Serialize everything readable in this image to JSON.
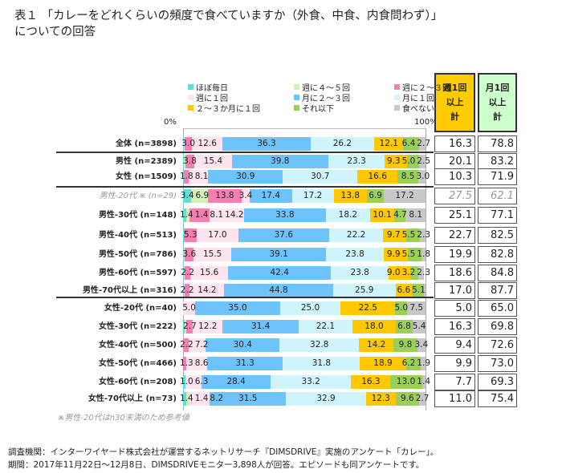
{
  "title_line1": "表１ 「カレーをどれくらいの頻度で食べていますか（外食、中食、内食問わず）」",
  "title_line2": "についての回答",
  "note": "※男性-20代はn30未満のため参考値",
  "footer_line1": "調査機関：インターワイヤード株式会社が運営するネットリサーチ『DIMSDRIVE』実施のアンケート「カレー」。",
  "footer_line2": "期間：2017年11月22日～12月8日、DIMSDRIVEモニター3,898人が回答。エピソードも同アンケートです。",
  "table_headers": {
    "weekly": [
      "週1回",
      "以上",
      "計"
    ],
    "monthly": [
      "月1回",
      "以上",
      "計"
    ]
  },
  "colors": {
    "weekly_header": "#ffcc00",
    "monthly_header": "#ccffcc"
  },
  "chart_data": {
    "type": "bar",
    "orientation": "horizontal-stacked-100",
    "axis_labels": {
      "left": "0%",
      "right": "100%"
    },
    "xlim": [
      0,
      100
    ],
    "legend_placement": "top",
    "series": [
      {
        "name": "ほぼ毎日",
        "color": "#5ee0d8"
      },
      {
        "name": "週に４～５回",
        "color": "#d4f0b8"
      },
      {
        "name": "週に２～３回",
        "color": "#f47fb0"
      },
      {
        "name": "週に１回",
        "color": "#fde4ef"
      },
      {
        "name": "月に２～３回",
        "color": "#6ec3fc"
      },
      {
        "name": "月に１回",
        "color": "#cff4fb"
      },
      {
        "name": "２～３か月に１回",
        "color": "#ffc800"
      },
      {
        "name": "それ以下",
        "color": "#9ad05a"
      },
      {
        "name": "食べない",
        "color": "#c8c8c8"
      }
    ],
    "categories": [
      {
        "label": "全体 (n=3898)",
        "values": [
          0.3,
          0.4,
          3.0,
          12.6,
          36.3,
          26.2,
          12.1,
          6.4,
          2.7
        ],
        "weekly": "16.3",
        "monthly": "78.8"
      },
      {
        "label": "男性 (n=2389)",
        "values": [
          0.4,
          0.5,
          3.8,
          15.4,
          39.8,
          23.3,
          9.3,
          5.0,
          2.5
        ],
        "weekly": "20.1",
        "monthly": "83.2"
      },
      {
        "label": "女性 (n=1509)",
        "values": [
          0.2,
          0.2,
          1.8,
          8.1,
          30.9,
          30.7,
          16.6,
          8.5,
          3.0
        ],
        "weekly": "10.3",
        "monthly": "71.9"
      },
      {
        "label": "男性-20代 ※ (n=29)",
        "reference": true,
        "values": [
          3.4,
          6.9,
          13.8,
          3.4,
          17.4,
          17.2,
          13.8,
          6.9,
          17.2
        ],
        "weekly": "27.5",
        "monthly": "62.1"
      },
      {
        "label": "男性-30代 (n=148)",
        "values": [
          1.4,
          1.4,
          8.1,
          14.2,
          33.8,
          18.2,
          10.1,
          4.7,
          8.1
        ],
        "weekly": "25.1",
        "monthly": "77.1"
      },
      {
        "label": "男性-40代 (n=513)",
        "values": [
          0.2,
          0.2,
          5.3,
          17.0,
          37.6,
          22.2,
          9.7,
          5.5,
          2.3
        ],
        "weekly": "22.7",
        "monthly": "82.5"
      },
      {
        "label": "男性-50代 (n=786)",
        "values": [
          0.4,
          0.4,
          3.6,
          15.5,
          39.1,
          23.8,
          9.9,
          5.5,
          1.8
        ],
        "weekly": "19.9",
        "monthly": "82.8"
      },
      {
        "label": "男性-60代 (n=597)",
        "values": [
          0.4,
          0.4,
          2.2,
          15.6,
          42.4,
          23.8,
          9.0,
          3.2,
          2.3
        ],
        "weekly": "18.6",
        "monthly": "84.8"
      },
      {
        "label": "男性-70代以上 (n=316)",
        "values": [
          0.3,
          0.3,
          2.2,
          14.2,
          44.8,
          25.9,
          6.6,
          5.1,
          0.6
        ],
        "weekly": "17.0",
        "monthly": "87.7"
      },
      {
        "label": "女性-20代 (n=40)",
        "values": [
          0,
          0,
          0,
          5.0,
          35.0,
          25.0,
          22.5,
          5.0,
          7.5
        ],
        "weekly": "5.0",
        "monthly": "65.0"
      },
      {
        "label": "女性-30代 (n=222)",
        "values": [
          0.5,
          0.9,
          2.7,
          12.2,
          31.4,
          22.1,
          18.0,
          6.8,
          5.4
        ],
        "weekly": "16.3",
        "monthly": "69.8"
      },
      {
        "label": "女性-40代 (n=500)",
        "values": [
          0,
          0,
          2.2,
          7.2,
          30.4,
          32.8,
          14.2,
          9.8,
          3.4
        ],
        "weekly": "9.4",
        "monthly": "72.6"
      },
      {
        "label": "女性-50代 (n=466)",
        "values": [
          0,
          0,
          1.3,
          8.6,
          31.3,
          31.8,
          18.9,
          6.2,
          1.9
        ],
        "weekly": "9.9",
        "monthly": "73.0"
      },
      {
        "label": "女性-60代 (n=208)",
        "values": [
          1.0,
          0.4,
          0,
          6.3,
          28.4,
          33.2,
          16.3,
          13.0,
          1.4
        ],
        "weekly": "7.7",
        "monthly": "69.3"
      },
      {
        "label": "女性-70代以上 (n=73)",
        "values": [
          1.4,
          1.4,
          0,
          8.2,
          31.5,
          32.9,
          12.3,
          9.6,
          2.7
        ],
        "weekly": "11.0",
        "monthly": "75.4"
      }
    ]
  }
}
